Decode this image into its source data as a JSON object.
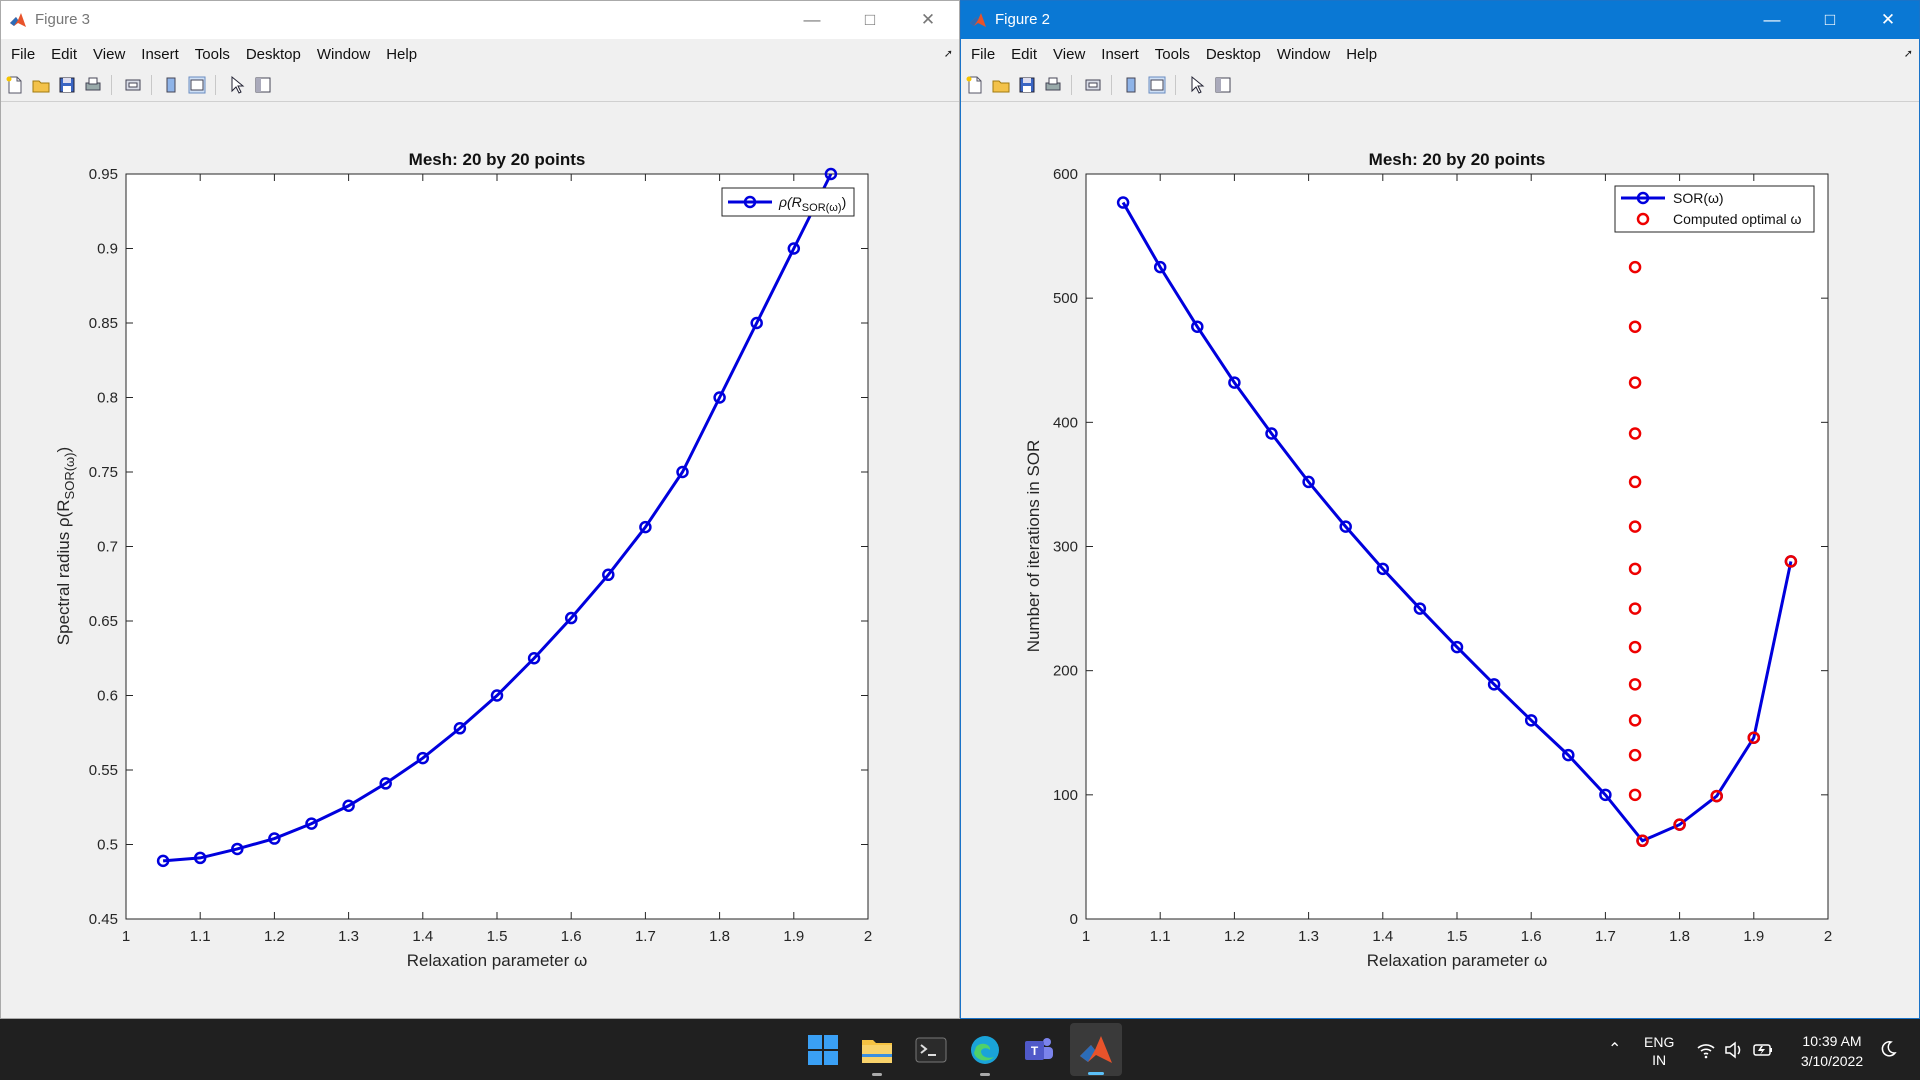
{
  "fig3": {
    "title": "Figure 3",
    "menu": [
      "File",
      "Edit",
      "View",
      "Insert",
      "Tools",
      "Desktop",
      "Window",
      "Help"
    ],
    "plot_title": "Mesh: 20 by 20 points",
    "xlabel": "Relaxation parameter ω",
    "ylabel": "Spectral radius ρ(R",
    "ylabel_sub": "SOR(ω)",
    "ylabel_end": ")",
    "legend_text": "ρ(R",
    "legend_sub": "SOR(ω)",
    "legend_end": ")"
  },
  "fig2": {
    "title": "Figure 2",
    "menu": [
      "File",
      "Edit",
      "View",
      "Insert",
      "Tools",
      "Desktop",
      "Window",
      "Help"
    ],
    "plot_title": "Mesh: 20 by 20 points",
    "xlabel": "Relaxation parameter ω",
    "ylabel": "Number of iterations in SOR",
    "legend": [
      "SOR(ω)",
      "Computed optimal ω"
    ]
  },
  "colors": {
    "series": "#0000dd",
    "optimal": "#ee0000",
    "titlebar_active": "#0a78d4"
  },
  "taskbar": {
    "lang_top": "ENG",
    "lang_bottom": "IN",
    "time": "10:39 AM",
    "date": "3/10/2022"
  },
  "chart_data": [
    {
      "type": "line",
      "title": "Mesh: 20 by 20 points",
      "xlabel": "Relaxation parameter ω",
      "ylabel": "Spectral radius ρ(R_SOR(ω))",
      "xlim": [
        1,
        2
      ],
      "ylim": [
        0.45,
        0.95
      ],
      "xticks": [
        "1",
        "1.1",
        "1.2",
        "1.3",
        "1.4",
        "1.5",
        "1.6",
        "1.7",
        "1.8",
        "1.9",
        "2"
      ],
      "yticks": [
        "0.45",
        "0.5",
        "0.55",
        "0.6",
        "0.65",
        "0.7",
        "0.75",
        "0.8",
        "0.85",
        "0.9",
        "0.95"
      ],
      "legend_position": "top-right",
      "grid": false,
      "series": [
        {
          "name": "ρ(R_SOR(ω))",
          "x": [
            1.05,
            1.1,
            1.15,
            1.2,
            1.25,
            1.3,
            1.35,
            1.4,
            1.45,
            1.5,
            1.55,
            1.6,
            1.65,
            1.7,
            1.75,
            1.8,
            1.85,
            1.9,
            1.95
          ],
          "y": [
            0.489,
            0.491,
            0.497,
            0.504,
            0.514,
            0.526,
            0.541,
            0.558,
            0.578,
            0.6,
            0.625,
            0.652,
            0.681,
            0.713,
            0.75,
            0.8,
            0.85,
            0.9,
            0.95
          ]
        }
      ]
    },
    {
      "type": "line",
      "title": "Mesh: 20 by 20 points",
      "xlabel": "Relaxation parameter ω",
      "ylabel": "Number of iterations in SOR",
      "xlim": [
        1,
        2
      ],
      "ylim": [
        0,
        600
      ],
      "xticks": [
        "1",
        "1.1",
        "1.2",
        "1.3",
        "1.4",
        "1.5",
        "1.6",
        "1.7",
        "1.8",
        "1.9",
        "2"
      ],
      "yticks": [
        "0",
        "100",
        "200",
        "300",
        "400",
        "500",
        "600"
      ],
      "legend_position": "top-right",
      "grid": false,
      "series": [
        {
          "name": "SOR(ω)",
          "x": [
            1.05,
            1.1,
            1.15,
            1.2,
            1.25,
            1.3,
            1.35,
            1.4,
            1.45,
            1.5,
            1.55,
            1.6,
            1.65,
            1.7,
            1.75,
            1.8,
            1.85,
            1.9,
            1.95
          ],
          "y": [
            577,
            525,
            477,
            432,
            391,
            352,
            316,
            282,
            250,
            219,
            189,
            160,
            132,
            100,
            63,
            76,
            99,
            146,
            288
          ]
        },
        {
          "name": "Computed optimal ω",
          "x": [
            1.74,
            1.74,
            1.74,
            1.74,
            1.74,
            1.74,
            1.74,
            1.74,
            1.74,
            1.74,
            1.74,
            1.74,
            1.74,
            1.75,
            1.8,
            1.85,
            1.9,
            1.95
          ],
          "y": [
            525,
            477,
            432,
            391,
            352,
            316,
            282,
            250,
            219,
            189,
            160,
            132,
            100,
            63,
            76,
            99,
            146,
            288
          ]
        }
      ]
    }
  ]
}
